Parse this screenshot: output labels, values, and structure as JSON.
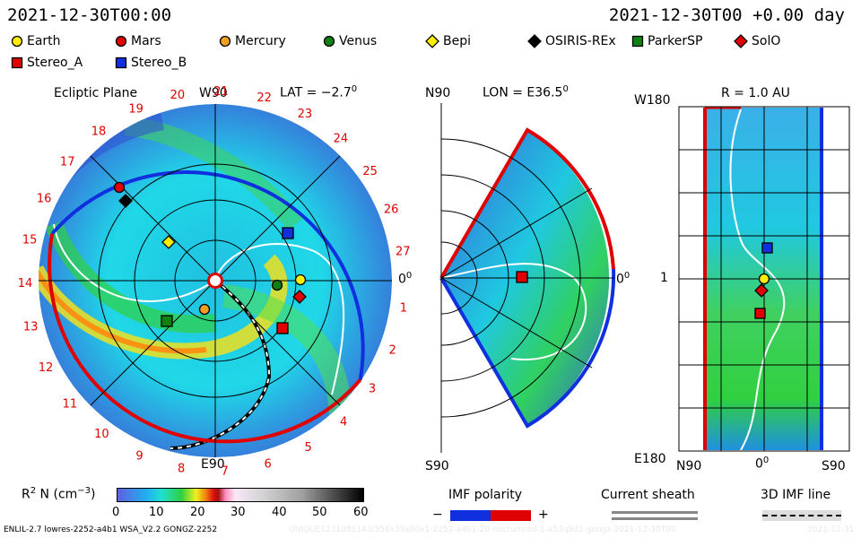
{
  "header": {
    "date_left": "2021-12-30T00:00",
    "date_right": "2021-12-30T00 +0.00 day"
  },
  "legend": [
    {
      "label": "Earth",
      "color": "#ffee00",
      "shape": "circle"
    },
    {
      "label": "Mars",
      "color": "#e00000",
      "shape": "circle"
    },
    {
      "label": "Mercury",
      "color": "#f0a020",
      "shape": "circle"
    },
    {
      "label": "Venus",
      "color": "#108010",
      "shape": "circle"
    },
    {
      "label": "Bepi",
      "color": "#ffee00",
      "shape": "diamond"
    },
    {
      "label": "OSIRIS-REx",
      "color": "#000000",
      "shape": "diamond"
    },
    {
      "label": "ParkerSP",
      "color": "#108010",
      "shape": "square"
    },
    {
      "label": "SolO",
      "color": "#e00000",
      "shape": "diamond"
    },
    {
      "label": "Stereo_A",
      "color": "#e00000",
      "shape": "square"
    },
    {
      "label": "Stereo_B",
      "color": "#1030e0",
      "shape": "square"
    }
  ],
  "ecliptic": {
    "title": "Ecliptic Plane",
    "top_label": "W90",
    "bottom_label": "E90",
    "right_label": "0",
    "right_sup": "0",
    "lat_label": "LAT = −2.7",
    "lat_sup": "0",
    "rotation_labels": [
      "1",
      "2",
      "3",
      "4",
      "5",
      "6",
      "7",
      "8",
      "9",
      "10",
      "11",
      "12",
      "13",
      "14",
      "15",
      "16",
      "17",
      "18",
      "19",
      "20",
      "21",
      "22",
      "23",
      "24",
      "25",
      "26",
      "27"
    ]
  },
  "meridional": {
    "top_label": "N90",
    "bottom_label": "S90",
    "lon_label": "LON = E36.5",
    "lon_sup": "0",
    "right_label": "0",
    "right_sup": "0"
  },
  "radial": {
    "title": "R = 1.0 AU",
    "top_left": "W180",
    "bottom_left": "E180",
    "mid_left": "1",
    "bottom_n": "N90",
    "bottom_mid": "0",
    "bottom_mid_sup": "0",
    "bottom_s": "S90"
  },
  "colorbar": {
    "label": "R",
    "label_sup": "2",
    "label_rest": " N (cm",
    "label_exp": "−3",
    "label_end": ")",
    "ticks": [
      "0",
      "10",
      "20",
      "30",
      "40",
      "50",
      "60"
    ]
  },
  "imf_polarity": {
    "title": "IMF polarity",
    "minus": "−",
    "plus": "+"
  },
  "current_sheath": {
    "title": "Current sheath"
  },
  "imf_line": {
    "title": "3D IMF line"
  },
  "footer": {
    "left": "ENLIL-2.7 lowres-2252-a4b1 WSA_V2.2 GONGZ-2252",
    "right": "UNIQUE1231085143/356x30x90x1-2252-a4b1-20-noctumrad-1-a53q9d2-gongz-2021-12-30T00",
    "far_right": "2021-12-31"
  }
}
